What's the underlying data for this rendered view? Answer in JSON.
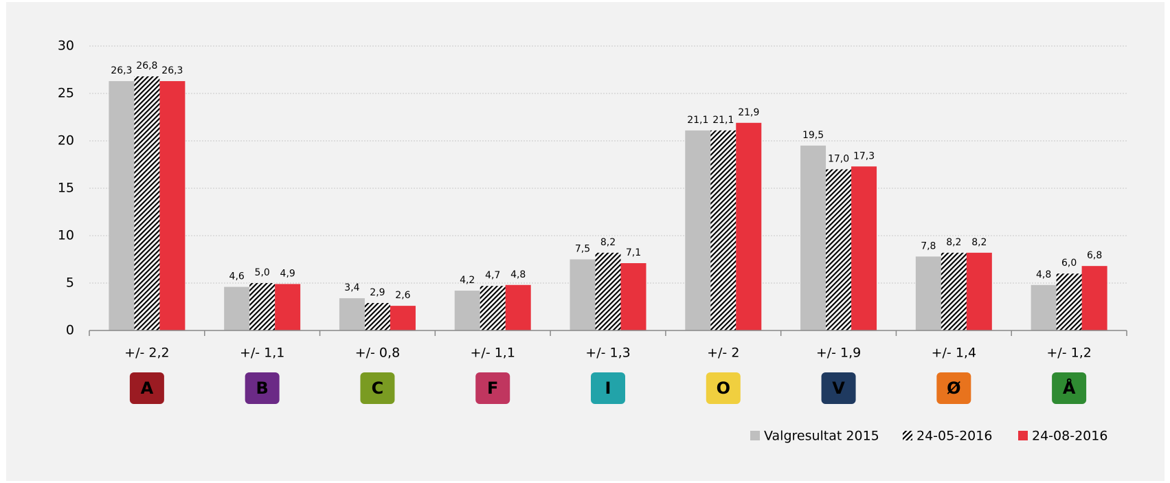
{
  "chart_data": {
    "type": "bar",
    "categories": [
      "+/- 2,2",
      "+/- 1,1",
      "+/- 0,8",
      "+/- 1,1",
      "+/- 1,3",
      "+/- 2",
      "+/- 1,9",
      "+/- 1,4",
      "+/- 1,2"
    ],
    "party_letters": [
      "A",
      "B",
      "C",
      "F",
      "I",
      "O",
      "V",
      "Ø",
      "Å"
    ],
    "party_colors": [
      "#9b1b22",
      "#6b2a86",
      "#7a9b22",
      "#c0365f",
      "#22a3a9",
      "#f0cf3f",
      "#1f3a60",
      "#e8731d",
      "#2f8b32"
    ],
    "series": [
      {
        "name": "Valgresultat 2015",
        "color": "#bfbfbf",
        "values": [
          26.3,
          4.6,
          3.4,
          4.2,
          7.5,
          21.1,
          19.5,
          7.8,
          4.8
        ],
        "value_labels": [
          "26,3",
          "4,6",
          "3,4",
          "4,2",
          "7,5",
          "21,1",
          "19,5",
          "7,8",
          "4,8"
        ]
      },
      {
        "name": "24-05-2016",
        "color": "#000000",
        "pattern": "diagonal",
        "values": [
          26.8,
          5.0,
          2.9,
          4.7,
          8.2,
          21.1,
          17.0,
          8.2,
          6.0
        ],
        "value_labels": [
          "26,8",
          "5,0",
          "2,9",
          "4,7",
          "8,2",
          "21,1",
          "17,0",
          "8,2",
          "6,0"
        ]
      },
      {
        "name": "24-08-2016",
        "color": "#e8323d",
        "values": [
          26.3,
          4.9,
          2.6,
          4.8,
          7.1,
          21.9,
          17.3,
          8.2,
          6.8
        ],
        "value_labels": [
          "26,3",
          "4,9",
          "2,6",
          "4,8",
          "7,1",
          "21,9",
          "17,3",
          "8,2",
          "6,8"
        ]
      }
    ],
    "ylim": [
      0,
      30
    ],
    "yticks": [
      0,
      5,
      10,
      15,
      20,
      25,
      30
    ],
    "grid": true,
    "legend": "bottom-right"
  }
}
